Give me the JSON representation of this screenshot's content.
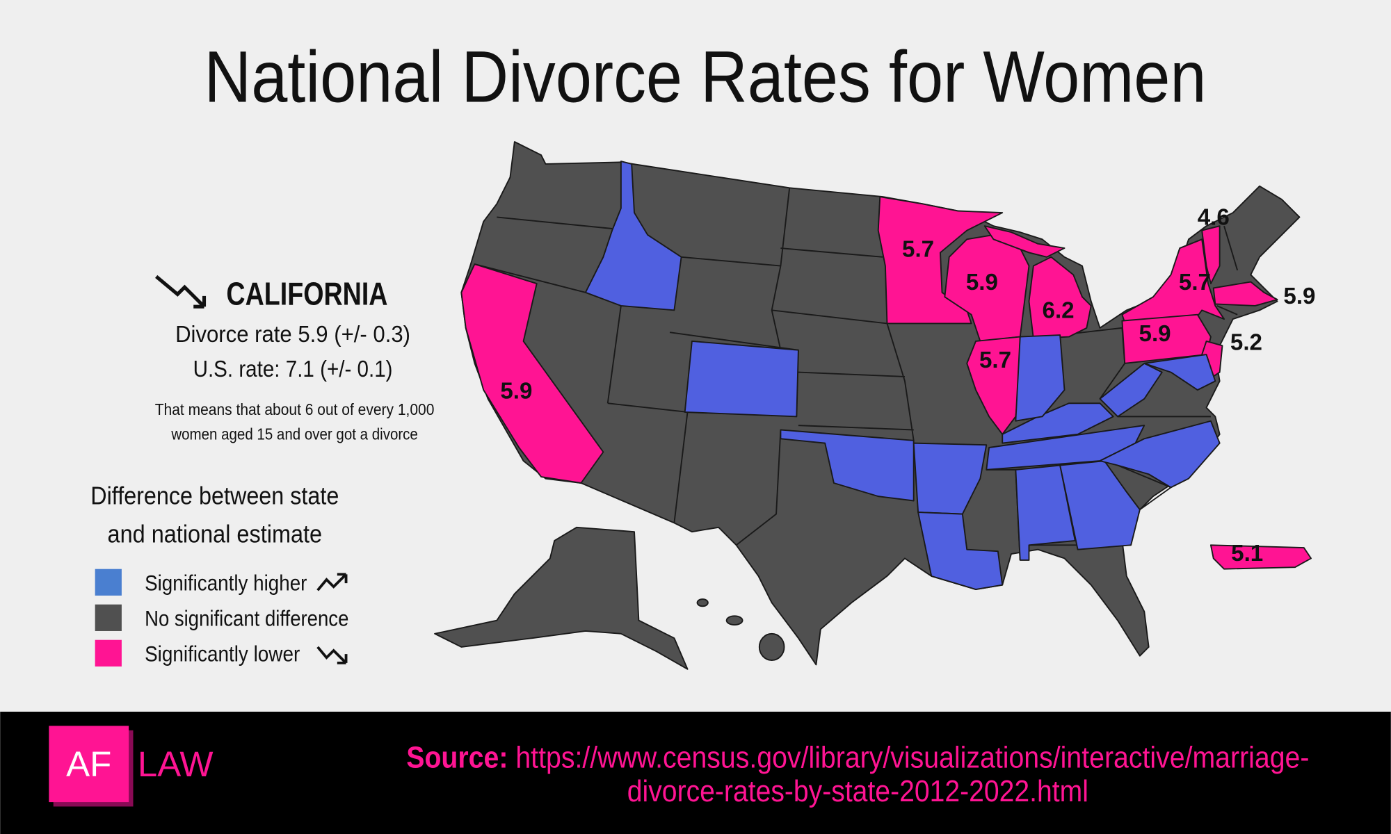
{
  "title": "National Divorce Rates for Women",
  "highlight": {
    "state": "CALIFORNIA",
    "rate": "Divorce rate 5.9 (+/- 0.3)",
    "us_rate": "U.S. rate: 7.1 (+/- 0.1)",
    "note": [
      "That means that about 6 out of every 1,000",
      "women aged 15 and over got a divorce"
    ]
  },
  "legend": {
    "title": [
      "Difference between state",
      "and national estimate"
    ],
    "items": [
      {
        "label": "Significantly higher",
        "color": "#4a7fd0"
      },
      {
        "label": "No significant difference",
        "color": "#505050"
      },
      {
        "label": "Significantly lower",
        "color": "#ff1493"
      }
    ]
  },
  "map": {
    "labels": [
      5.9,
      5.7,
      5.9,
      6.2,
      5.7,
      5.7,
      5.9,
      4.6,
      5.9,
      5.2,
      5.1
    ]
  },
  "footer": {
    "logo": [
      "AF",
      "LAW"
    ],
    "source_label": "Source:",
    "source_url": [
      "https://www.census.gov/library/visualizations/interactive/marriage-",
      "divorce-rates-by-state-2012-2022.html"
    ]
  }
}
